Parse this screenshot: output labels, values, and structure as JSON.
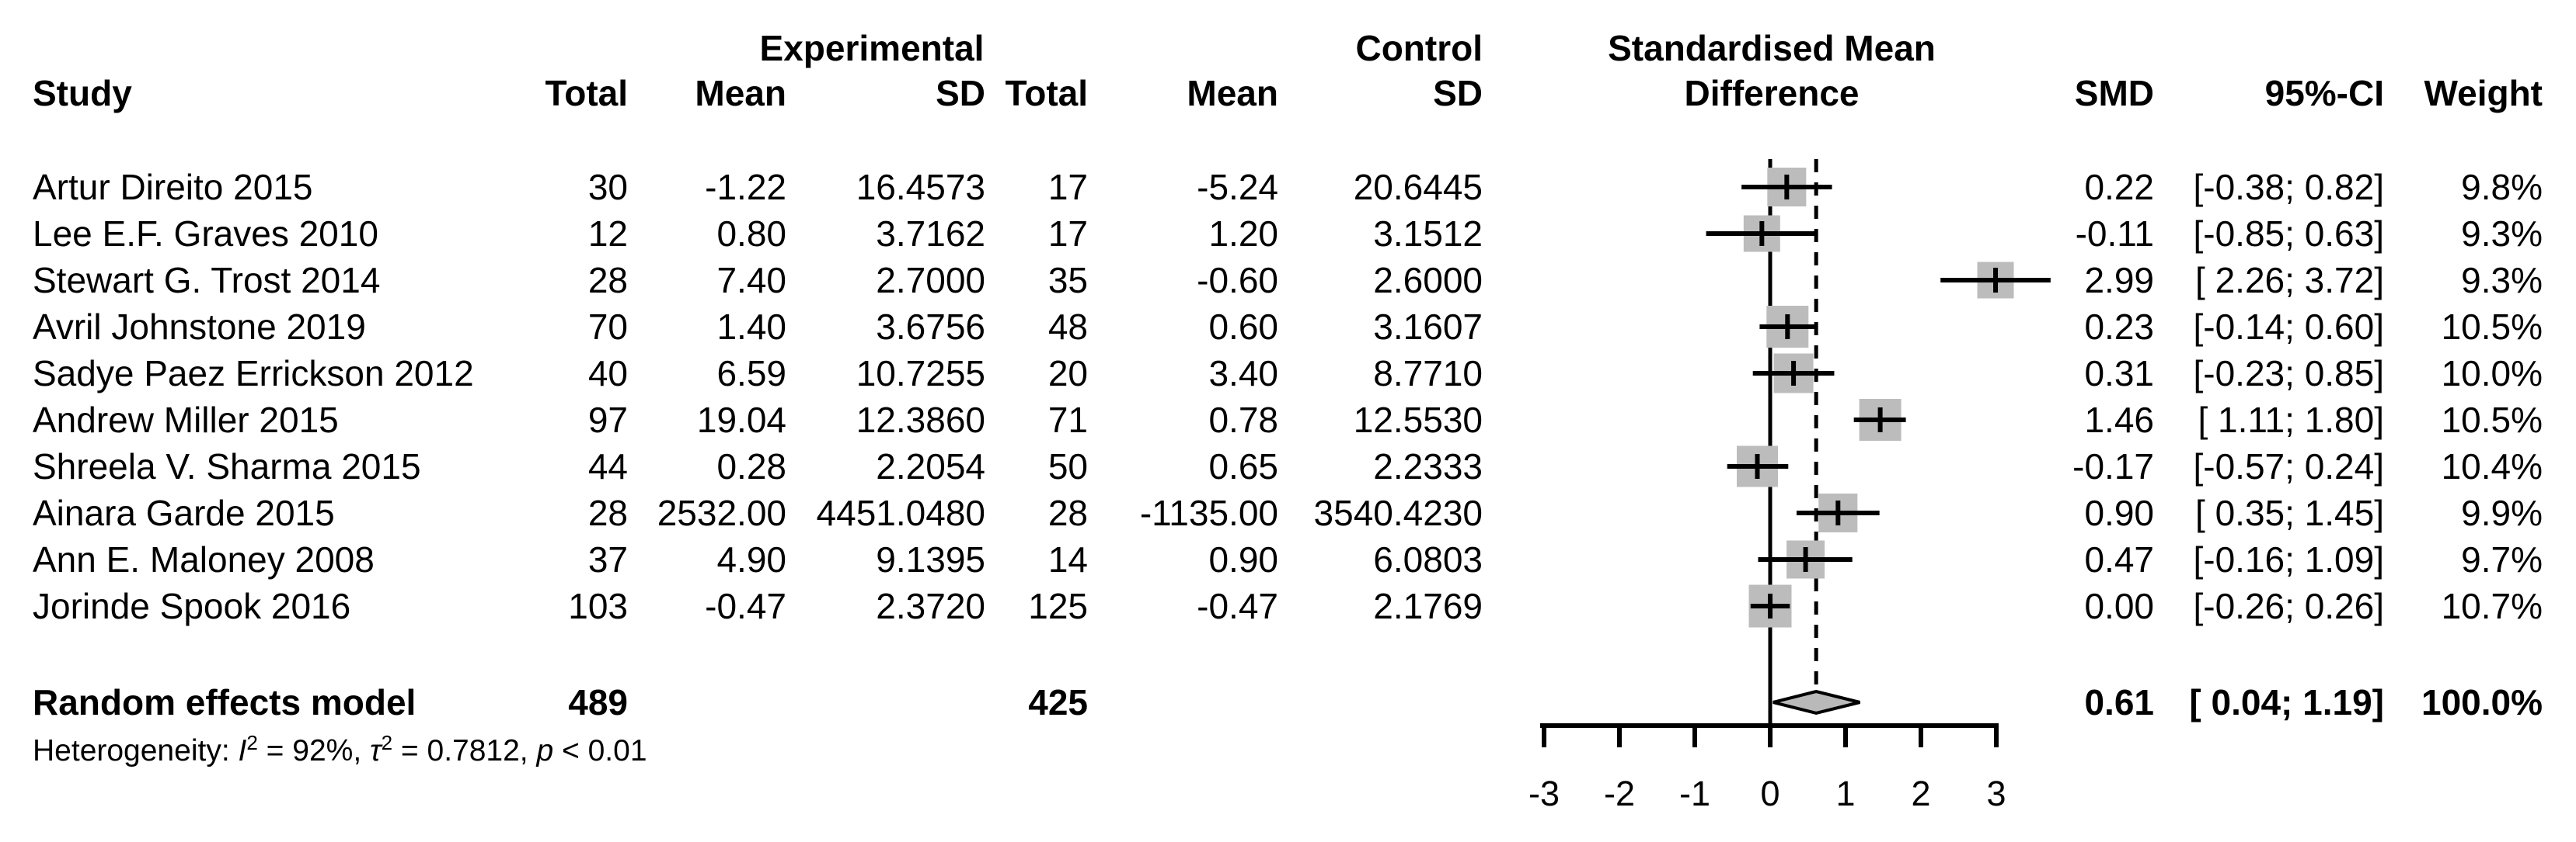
{
  "colors": {
    "background": "#ffffff",
    "text": "#000000",
    "square_fill": "#bcbcbc",
    "diamond_fill": "#b9b9b9",
    "line": "#000000"
  },
  "header": {
    "group_experimental": "Experimental",
    "group_control": "Control",
    "plot_title_line1": "Standardised Mean",
    "plot_title_line2": "Difference",
    "col_study": "Study",
    "col_total_exp": "Total",
    "col_mean_exp": "Mean",
    "col_sd_exp": "SD",
    "col_total_ctrl": "Total",
    "col_mean_ctrl": "Mean",
    "col_sd_ctrl": "SD",
    "col_smd": "SMD",
    "col_ci": "95%-CI",
    "col_weight": "Weight"
  },
  "table": {
    "rows": [
      {
        "study": "Artur Direito 2015",
        "exp_total": "30",
        "exp_mean": "-1.22",
        "exp_sd": "16.4573",
        "ctrl_total": "17",
        "ctrl_mean": "-5.24",
        "ctrl_sd": "20.6445",
        "smd": "0.22",
        "ci": "[-0.38; 0.82]",
        "weight": "9.8%"
      },
      {
        "study": "Lee E.F. Graves 2010",
        "exp_total": "12",
        "exp_mean": "0.80",
        "exp_sd": "3.7162",
        "ctrl_total": "17",
        "ctrl_mean": "1.20",
        "ctrl_sd": "3.1512",
        "smd": "-0.11",
        "ci": "[-0.85; 0.63]",
        "weight": "9.3%"
      },
      {
        "study": "Stewart G. Trost 2014",
        "exp_total": "28",
        "exp_mean": "7.40",
        "exp_sd": "2.7000",
        "ctrl_total": "35",
        "ctrl_mean": "-0.60",
        "ctrl_sd": "2.6000",
        "smd": "2.99",
        "ci": "[ 2.26; 3.72]",
        "weight": "9.3%"
      },
      {
        "study": "Avril Johnstone 2019",
        "exp_total": "70",
        "exp_mean": "1.40",
        "exp_sd": "3.6756",
        "ctrl_total": "48",
        "ctrl_mean": "0.60",
        "ctrl_sd": "3.1607",
        "smd": "0.23",
        "ci": "[-0.14; 0.60]",
        "weight": "10.5%"
      },
      {
        "study": "Sadye Paez Errickson 2012",
        "exp_total": "40",
        "exp_mean": "6.59",
        "exp_sd": "10.7255",
        "ctrl_total": "20",
        "ctrl_mean": "3.40",
        "ctrl_sd": "8.7710",
        "smd": "0.31",
        "ci": "[-0.23; 0.85]",
        "weight": "10.0%"
      },
      {
        "study": "Andrew Miller 2015",
        "exp_total": "97",
        "exp_mean": "19.04",
        "exp_sd": "12.3860",
        "ctrl_total": "71",
        "ctrl_mean": "0.78",
        "ctrl_sd": "12.5530",
        "smd": "1.46",
        "ci": "[ 1.11; 1.80]",
        "weight": "10.5%"
      },
      {
        "study": "Shreela V. Sharma 2015",
        "exp_total": "44",
        "exp_mean": "0.28",
        "exp_sd": "2.2054",
        "ctrl_total": "50",
        "ctrl_mean": "0.65",
        "ctrl_sd": "2.2333",
        "smd": "-0.17",
        "ci": "[-0.57; 0.24]",
        "weight": "10.4%"
      },
      {
        "study": "Ainara Garde 2015",
        "exp_total": "28",
        "exp_mean": "2532.00",
        "exp_sd": "4451.0480",
        "ctrl_total": "28",
        "ctrl_mean": "-1135.00",
        "ctrl_sd": "3540.4230",
        "smd": "0.90",
        "ci": "[ 0.35; 1.45]",
        "weight": "9.9%"
      },
      {
        "study": "Ann E. Maloney 2008",
        "exp_total": "37",
        "exp_mean": "4.90",
        "exp_sd": "9.1395",
        "ctrl_total": "14",
        "ctrl_mean": "0.90",
        "ctrl_sd": "6.0803",
        "smd": "0.47",
        "ci": "[-0.16; 1.09]",
        "weight": "9.7%"
      },
      {
        "study": "Jorinde Spook 2016",
        "exp_total": "103",
        "exp_mean": "-0.47",
        "exp_sd": "2.3720",
        "ctrl_total": "125",
        "ctrl_mean": "-0.47",
        "ctrl_sd": "2.1769",
        "smd": "0.00",
        "ci": "[-0.26; 0.26]",
        "weight": "10.7%"
      }
    ]
  },
  "pooled": {
    "label": "Random effects model",
    "exp_total": "489",
    "ctrl_total": "425",
    "smd": "0.61",
    "ci": "[ 0.04; 1.19]",
    "weight": "100.0%"
  },
  "heterogeneity": {
    "prefix": "Heterogeneity: ",
    "stat1_name": "I",
    "stat1_sup": "2",
    "stat1_rest": " = 92%, ",
    "stat2_name": "τ",
    "stat2_sup": "2",
    "stat2_rest": " = 0.7812, ",
    "p_name": "p",
    "p_rest": " < 0.01"
  },
  "axis": {
    "tick_labels": [
      "-3",
      "-2",
      "-1",
      "0",
      "1",
      "2",
      "3"
    ]
  },
  "chart_data": {
    "type": "scatter",
    "subtype": "forest-plot",
    "title": "Standardised Mean Difference",
    "xlabel": "",
    "ylabel": "",
    "xlim": [
      -3,
      3
    ],
    "x_ticks": [
      -3,
      -2,
      -1,
      0,
      1,
      2,
      3
    ],
    "grid": false,
    "legend_position": "none",
    "reference_line": 0,
    "pooled_dashed_line": 0.61,
    "studies": [
      {
        "name": "Artur Direito 2015",
        "exp_total": 30,
        "exp_mean": -1.22,
        "exp_sd": 16.4573,
        "ctrl_total": 17,
        "ctrl_mean": -5.24,
        "ctrl_sd": 20.6445,
        "smd": 0.22,
        "ci_lower": -0.38,
        "ci_upper": 0.82,
        "weight_pct": 9.8
      },
      {
        "name": "Lee E.F. Graves 2010",
        "exp_total": 12,
        "exp_mean": 0.8,
        "exp_sd": 3.7162,
        "ctrl_total": 17,
        "ctrl_mean": 1.2,
        "ctrl_sd": 3.1512,
        "smd": -0.11,
        "ci_lower": -0.85,
        "ci_upper": 0.63,
        "weight_pct": 9.3
      },
      {
        "name": "Stewart G. Trost 2014",
        "exp_total": 28,
        "exp_mean": 7.4,
        "exp_sd": 2.7,
        "ctrl_total": 35,
        "ctrl_mean": -0.6,
        "ctrl_sd": 2.6,
        "smd": 2.99,
        "ci_lower": 2.26,
        "ci_upper": 3.72,
        "weight_pct": 9.3
      },
      {
        "name": "Avril Johnstone 2019",
        "exp_total": 70,
        "exp_mean": 1.4,
        "exp_sd": 3.6756,
        "ctrl_total": 48,
        "ctrl_mean": 0.6,
        "ctrl_sd": 3.1607,
        "smd": 0.23,
        "ci_lower": -0.14,
        "ci_upper": 0.6,
        "weight_pct": 10.5
      },
      {
        "name": "Sadye Paez Errickson 2012",
        "exp_total": 40,
        "exp_mean": 6.59,
        "exp_sd": 10.7255,
        "ctrl_total": 20,
        "ctrl_mean": 3.4,
        "ctrl_sd": 8.771,
        "smd": 0.31,
        "ci_lower": -0.23,
        "ci_upper": 0.85,
        "weight_pct": 10.0
      },
      {
        "name": "Andrew Miller 2015",
        "exp_total": 97,
        "exp_mean": 19.04,
        "exp_sd": 12.386,
        "ctrl_total": 71,
        "ctrl_mean": 0.78,
        "ctrl_sd": 12.553,
        "smd": 1.46,
        "ci_lower": 1.11,
        "ci_upper": 1.8,
        "weight_pct": 10.5
      },
      {
        "name": "Shreela V. Sharma 2015",
        "exp_total": 44,
        "exp_mean": 0.28,
        "exp_sd": 2.2054,
        "ctrl_total": 50,
        "ctrl_mean": 0.65,
        "ctrl_sd": 2.2333,
        "smd": -0.17,
        "ci_lower": -0.57,
        "ci_upper": 0.24,
        "weight_pct": 10.4
      },
      {
        "name": "Ainara Garde 2015",
        "exp_total": 28,
        "exp_mean": 2532.0,
        "exp_sd": 4451.048,
        "ctrl_total": 28,
        "ctrl_mean": -1135.0,
        "ctrl_sd": 3540.423,
        "smd": 0.9,
        "ci_lower": 0.35,
        "ci_upper": 1.45,
        "weight_pct": 9.9
      },
      {
        "name": "Ann E. Maloney 2008",
        "exp_total": 37,
        "exp_mean": 4.9,
        "exp_sd": 9.1395,
        "ctrl_total": 14,
        "ctrl_mean": 0.9,
        "ctrl_sd": 6.0803,
        "smd": 0.47,
        "ci_lower": -0.16,
        "ci_upper": 1.09,
        "weight_pct": 9.7
      },
      {
        "name": "Jorinde Spook 2016",
        "exp_total": 103,
        "exp_mean": -0.47,
        "exp_sd": 2.372,
        "ctrl_total": 125,
        "ctrl_mean": -0.47,
        "ctrl_sd": 2.1769,
        "smd": 0.0,
        "ci_lower": -0.26,
        "ci_upper": 0.26,
        "weight_pct": 10.7
      }
    ],
    "pooled": {
      "name": "Random effects model",
      "exp_total": 489,
      "ctrl_total": 425,
      "smd": 0.61,
      "ci_lower": 0.04,
      "ci_upper": 1.19,
      "weight_pct": 100.0,
      "heterogeneity_I2": "92%",
      "heterogeneity_tau2": 0.7812,
      "heterogeneity_p": "< 0.01"
    }
  }
}
